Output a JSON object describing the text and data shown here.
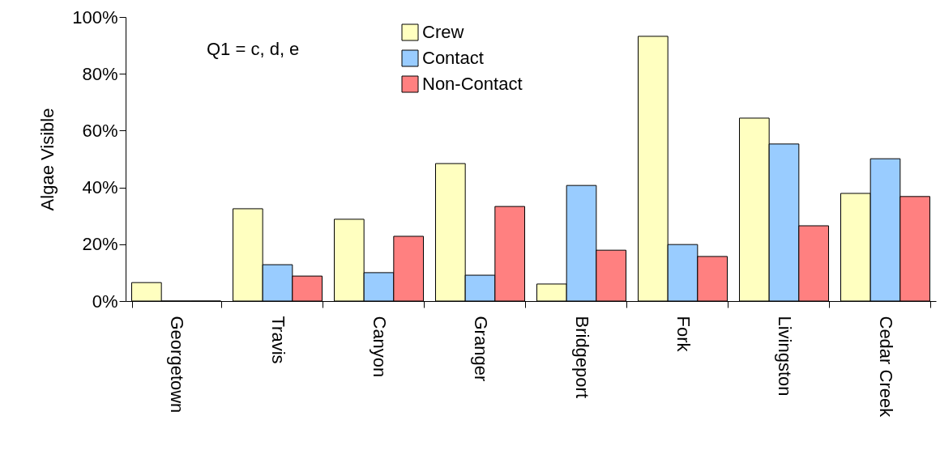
{
  "chart_data": {
    "type": "bar",
    "ylabel": "Algae Visible",
    "annotations": [
      "Q1 = c, d, e"
    ],
    "categories": [
      "Georgetown",
      "Travis",
      "Canyon",
      "Granger",
      "Bridgeport",
      "Fork",
      "Livingston",
      "Cedar Creek"
    ],
    "series": [
      {
        "name": "Crew",
        "color": "#ffffc0",
        "values": [
          6.5,
          32.5,
          28.8,
          48.4,
          6,
          93.2,
          64.4,
          37.9
        ]
      },
      {
        "name": "Contact",
        "color": "#99ccff",
        "values": [
          0,
          12.8,
          10,
          9.1,
          40.7,
          19.9,
          55.3,
          50.1
        ]
      },
      {
        "name": "Non-Contact",
        "color": "#ff8080",
        "values": [
          0,
          8.8,
          22.8,
          33.3,
          17.9,
          15.7,
          26.5,
          36.8
        ]
      }
    ],
    "ylim": [
      0,
      100
    ],
    "yticks": [
      {
        "value": 0,
        "label": "0%"
      },
      {
        "value": 20,
        "label": "20%"
      },
      {
        "value": 40,
        "label": "40%"
      },
      {
        "value": 60,
        "label": "60%"
      },
      {
        "value": 80,
        "label": "80%"
      },
      {
        "value": 100,
        "label": "100%"
      }
    ],
    "grid": false,
    "legend": "top"
  }
}
